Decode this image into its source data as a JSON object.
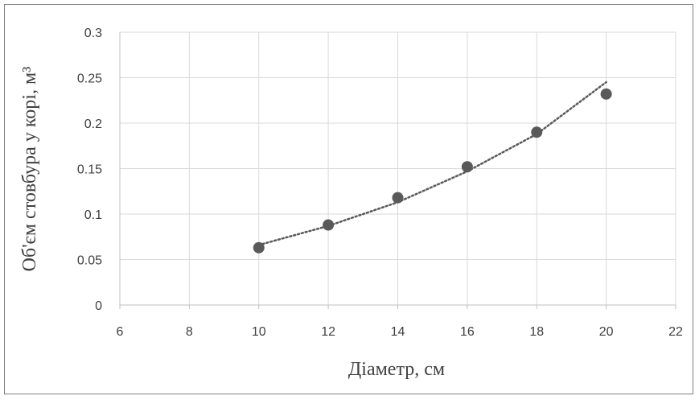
{
  "chart_data": {
    "type": "scatter",
    "xlabel": "Діаметр, см",
    "ylabel": "Об'єм стовбура у корі, м³",
    "xlim": [
      6,
      22
    ],
    "ylim": [
      0,
      0.3
    ],
    "x_ticks": [
      "6",
      "8",
      "10",
      "12",
      "14",
      "16",
      "18",
      "20",
      "22"
    ],
    "y_ticks": [
      "0",
      "0.05",
      "0.1",
      "0.15",
      "0.2",
      "0.25",
      "0.3"
    ],
    "grid": true,
    "legend": "none",
    "series": [
      {
        "x": [
          10,
          12,
          14,
          16,
          18,
          20
        ],
        "y": [
          0.063,
          0.088,
          0.118,
          0.152,
          0.19,
          0.232
        ],
        "marker_color": "#595959"
      }
    ],
    "trendline": {
      "style": "dotted",
      "color": "#595959",
      "x": [
        10,
        12,
        14,
        16,
        18,
        20
      ],
      "y": [
        0.066,
        0.087,
        0.113,
        0.147,
        0.188,
        0.245
      ]
    },
    "colors": {
      "grid": "#d9d9d9",
      "axis": "#bfbfbf",
      "text": "#404040"
    }
  }
}
